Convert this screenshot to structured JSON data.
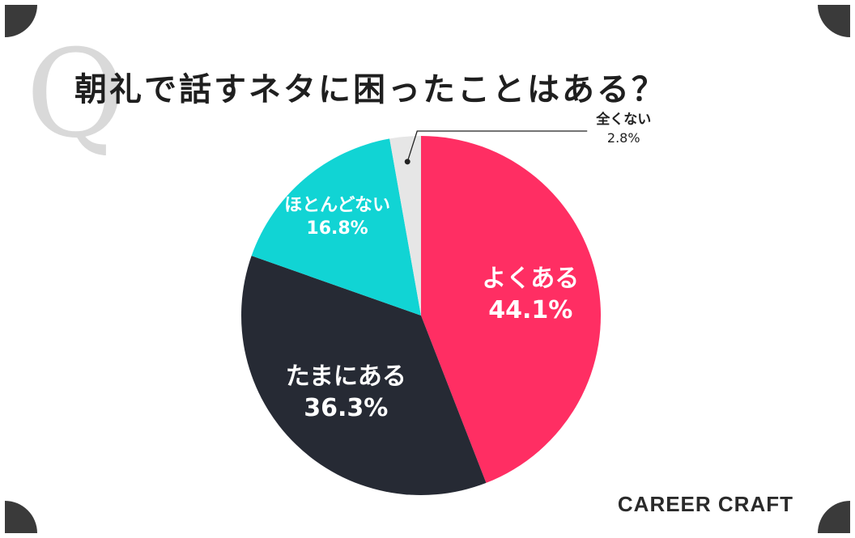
{
  "title": "朝礼で話すネタに困ったことはある？",
  "q_mark": "Q",
  "brand": "CAREER CRAFT",
  "colors": {
    "frame": "#3a3a3a",
    "card": "#ffffff",
    "q_mark": "#d9d9d9"
  },
  "chart_data": {
    "type": "pie",
    "title": "朝礼で話すネタに困ったことはある？",
    "slices": [
      {
        "label": "よくある",
        "value": 44.1,
        "value_label": "44.1%",
        "color": "#ff2e63"
      },
      {
        "label": "たまにある",
        "value": 36.3,
        "value_label": "36.3%",
        "color": "#262a34"
      },
      {
        "label": "ほとんどない",
        "value": 16.8,
        "value_label": "16.8%",
        "color": "#11d4d4"
      },
      {
        "label": "全くない",
        "value": 2.8,
        "value_label": "2.8%",
        "color": "#e6e6e6"
      }
    ]
  }
}
